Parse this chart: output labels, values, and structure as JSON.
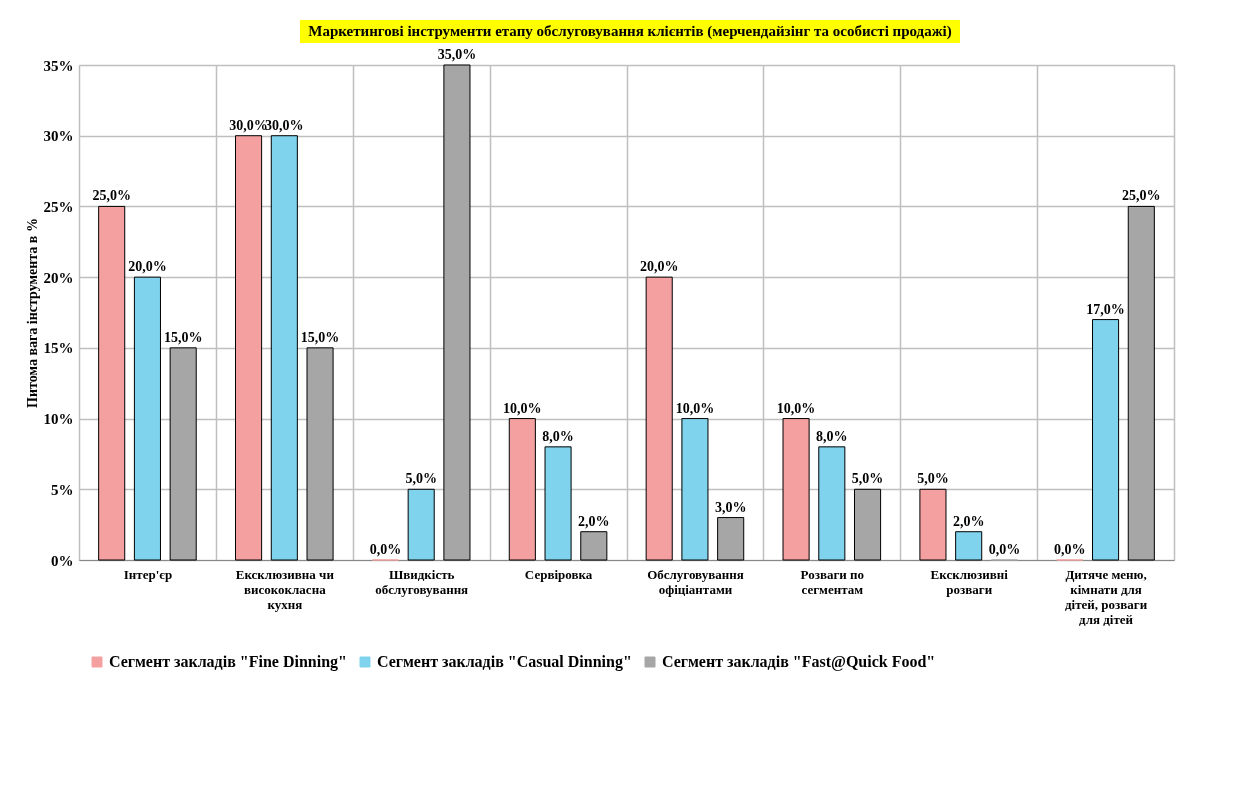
{
  "chart_data": {
    "type": "bar",
    "title": "Маркетингові інструменти етапу обслуговування клієнтів (мерчендайзінг та особисті продажі)",
    "ylabel": "Питома вага інструмента в %",
    "categories": [
      "Інтер'єр",
      "Ексклюзивна чи висококласна кухня",
      "Швидкість обслуговування",
      "Сервіровка",
      "Обслуговування офіціантами",
      "Розваги по сегментам",
      "Ексклюзивні розваги",
      "Дитяче меню, кімнати для дітей, розваги для дітей"
    ],
    "series": [
      {
        "name": "Сегмент закладів \"Fine Dinning\"",
        "color": "#f4a0a0",
        "values": [
          25,
          30,
          0,
          10,
          20,
          10,
          5,
          0
        ],
        "value_labels": [
          "25,0%",
          "30,0%",
          "0,0%",
          "10,0%",
          "20,0%",
          "10,0%",
          "5,0%",
          "0,0%"
        ]
      },
      {
        "name": "Сегмент закладів \"Casual Dinning\"",
        "color": "#7fd3ec",
        "values": [
          20,
          30,
          5,
          8,
          10,
          8,
          2,
          17
        ],
        "value_labels": [
          "20,0%",
          "30,0%",
          "5,0%",
          "8,0%",
          "10,0%",
          "8,0%",
          "2,0%",
          "17,0%"
        ]
      },
      {
        "name": "Сегмент закладів \"Fast@Quick Food\"",
        "color": "#a6a6a6",
        "values": [
          15,
          15,
          35,
          2,
          3,
          5,
          0,
          25
        ],
        "value_labels": [
          "15,0%",
          "15,0%",
          "35,0%",
          "2,0%",
          "3,0%",
          "5,0%",
          "0,0%",
          "25,0%"
        ]
      }
    ],
    "ylim": [
      0,
      35
    ],
    "yticks": [
      {
        "value": 0,
        "label": "0%"
      },
      {
        "value": 5,
        "label": "5%"
      },
      {
        "value": 10,
        "label": "10%"
      },
      {
        "value": 15,
        "label": "15%"
      },
      {
        "value": 20,
        "label": "20%"
      },
      {
        "value": 25,
        "label": "25%"
      },
      {
        "value": 30,
        "label": "30%"
      },
      {
        "value": 35,
        "label": "35%"
      }
    ],
    "grid": true,
    "legend": "bottom"
  }
}
